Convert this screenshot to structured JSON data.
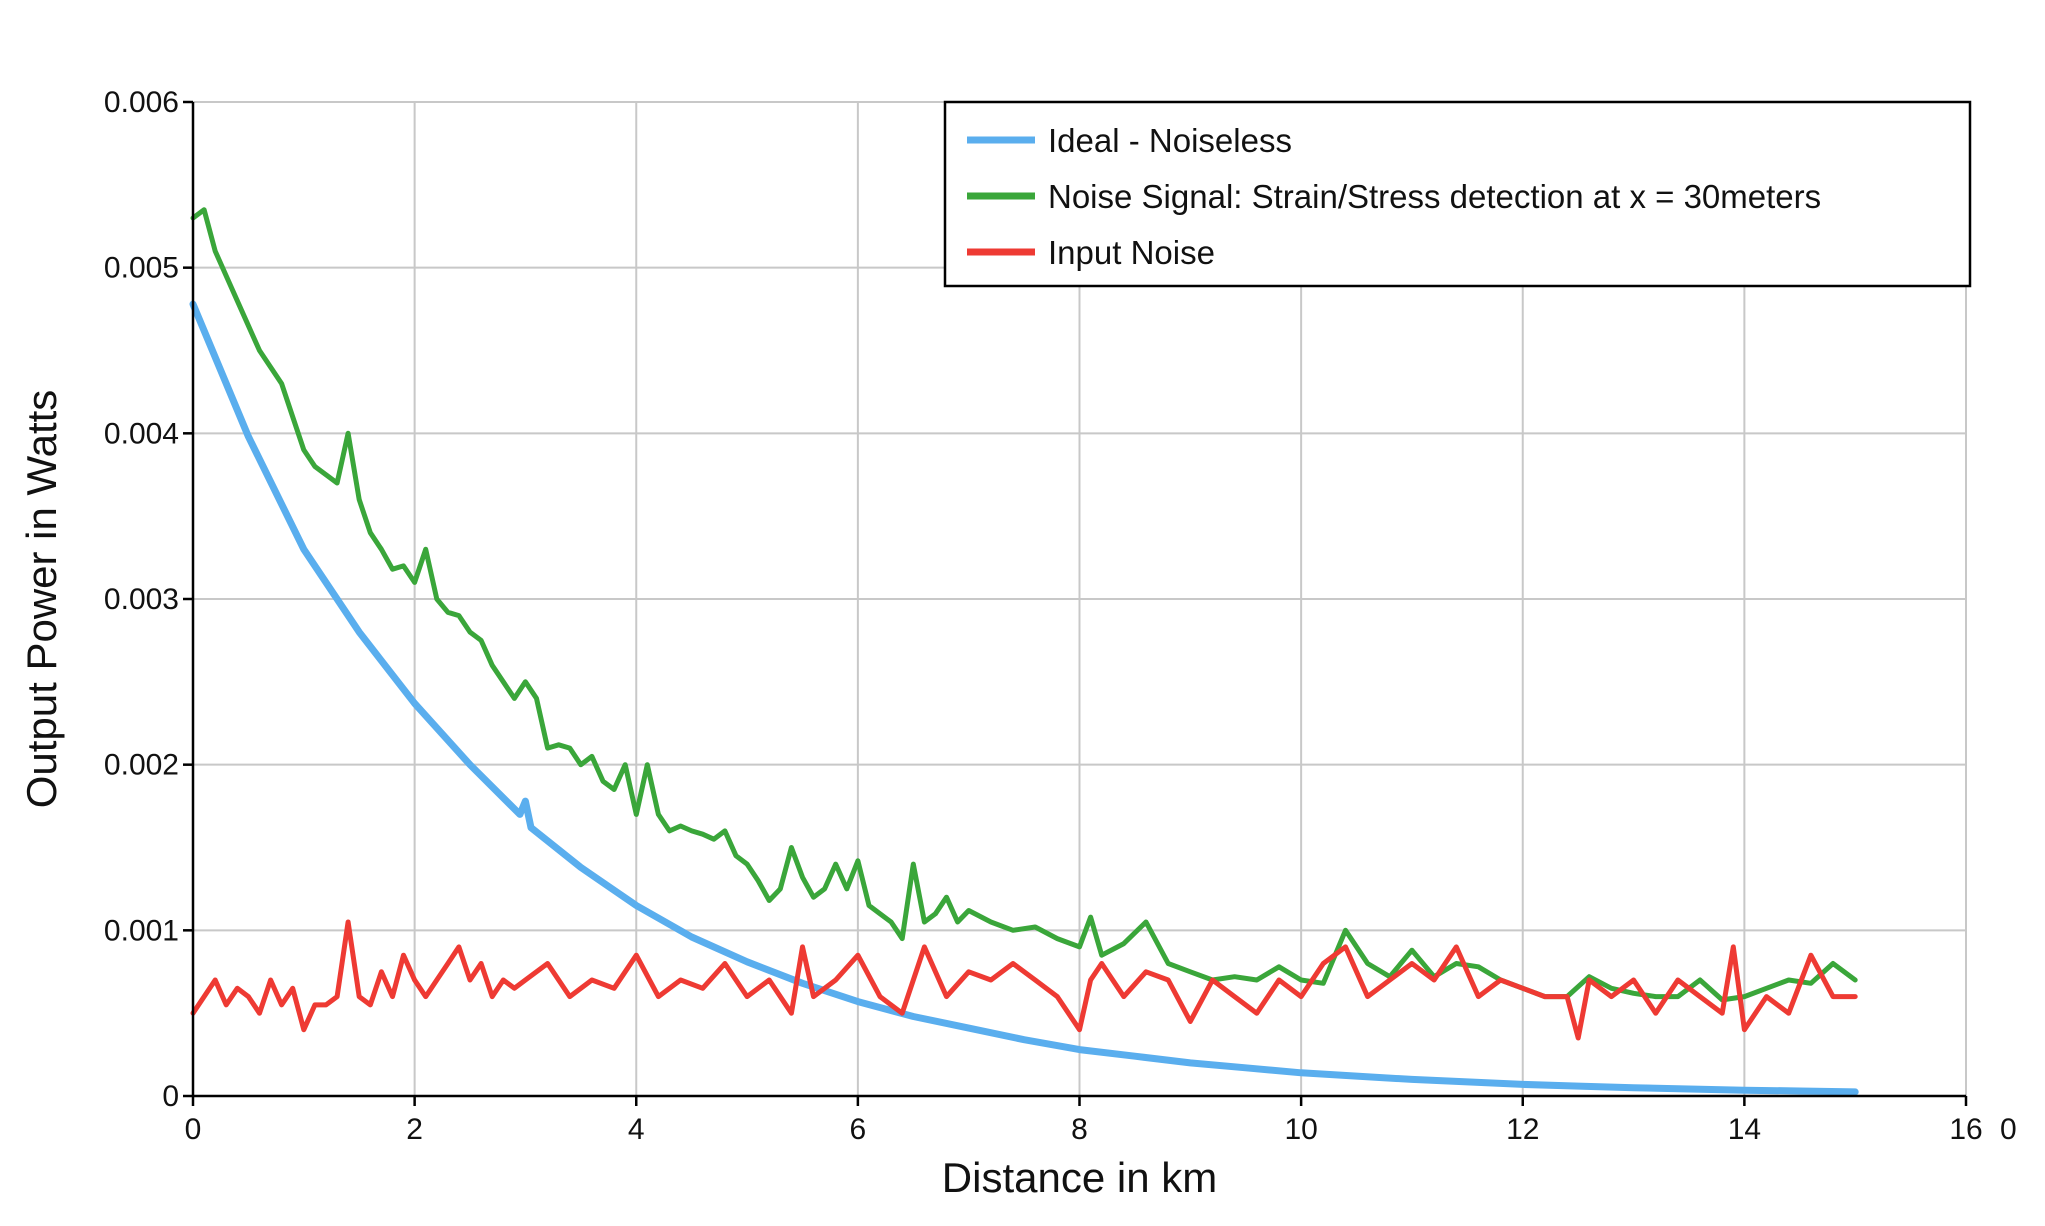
{
  "chart_data": {
    "type": "line",
    "title": "",
    "xlabel": "Distance in km",
    "ylabel": "Output Power in Watts",
    "xlim": [
      0,
      16
    ],
    "ylim": [
      0,
      0.006
    ],
    "x_ticks": [
      0,
      2,
      4,
      6,
      8,
      10,
      12,
      14,
      16
    ],
    "x_tick_labels": [
      "0",
      "2",
      "4",
      "6",
      "8",
      "10",
      "12",
      "14",
      "16"
    ],
    "y_ticks": [
      0,
      0.001,
      0.002,
      0.003,
      0.004,
      0.005,
      0.006
    ],
    "y_tick_labels": [
      "0",
      "0.001",
      "0.002",
      "0.003",
      "0.004",
      "0.005",
      "0.006"
    ],
    "extra_label": "0",
    "grid": true,
    "legend_position": "top-right",
    "series": [
      {
        "name": "Ideal - Noiseless",
        "color": "#5aaeee",
        "x": [
          0,
          0.5,
          1,
          1.5,
          2,
          2.5,
          2.95,
          3.0,
          3.05,
          3.5,
          4,
          4.5,
          5,
          5.5,
          6,
          6.5,
          7,
          7.5,
          8,
          8.5,
          9,
          9.5,
          10,
          10.5,
          11,
          11.5,
          12,
          12.5,
          13,
          13.5,
          14,
          14.5,
          15
        ],
        "y": [
          0.00478,
          0.00398,
          0.0033,
          0.0028,
          0.00237,
          0.002,
          0.0017,
          0.00178,
          0.00162,
          0.00138,
          0.00115,
          0.00096,
          0.00081,
          0.00068,
          0.00057,
          0.00048,
          0.00041,
          0.00034,
          0.00028,
          0.00024,
          0.0002,
          0.00017,
          0.00014,
          0.00012,
          0.0001,
          8.5e-05,
          7e-05,
          6e-05,
          5e-05,
          4.2e-05,
          3.5e-05,
          3e-05,
          2.5e-05
        ]
      },
      {
        "name": "Noise Signal: Strain/Stress detection at x = 30meters",
        "color": "#3aa63a",
        "x": [
          0,
          0.1,
          0.2,
          0.3,
          0.4,
          0.5,
          0.6,
          0.7,
          0.8,
          0.9,
          1.0,
          1.1,
          1.2,
          1.3,
          1.4,
          1.5,
          1.6,
          1.7,
          1.8,
          1.9,
          2.0,
          2.1,
          2.2,
          2.3,
          2.4,
          2.5,
          2.6,
          2.7,
          2.8,
          2.9,
          3.0,
          3.1,
          3.2,
          3.3,
          3.4,
          3.5,
          3.6,
          3.7,
          3.8,
          3.9,
          4.0,
          4.1,
          4.2,
          4.3,
          4.4,
          4.5,
          4.6,
          4.7,
          4.8,
          4.9,
          5.0,
          5.1,
          5.2,
          5.3,
          5.4,
          5.5,
          5.6,
          5.7,
          5.8,
          5.9,
          6.0,
          6.1,
          6.2,
          6.3,
          6.4,
          6.5,
          6.6,
          6.7,
          6.8,
          6.9,
          7.0,
          7.2,
          7.4,
          7.6,
          7.8,
          8.0,
          8.1,
          8.2,
          8.4,
          8.6,
          8.8,
          9.0,
          9.2,
          9.4,
          9.6,
          9.8,
          10.0,
          10.2,
          10.4,
          10.6,
          10.8,
          11.0,
          11.2,
          11.4,
          11.6,
          11.8,
          12.0,
          12.2,
          12.4,
          12.6,
          12.8,
          13.0,
          13.2,
          13.4,
          13.6,
          13.8,
          14.0,
          14.2,
          14.4,
          14.6,
          14.8,
          15.0
        ],
        "y": [
          0.0053,
          0.00535,
          0.0051,
          0.00495,
          0.0048,
          0.00465,
          0.0045,
          0.0044,
          0.0043,
          0.0041,
          0.0039,
          0.0038,
          0.00375,
          0.0037,
          0.004,
          0.0036,
          0.0034,
          0.0033,
          0.00318,
          0.0032,
          0.0031,
          0.0033,
          0.003,
          0.00292,
          0.0029,
          0.0028,
          0.00275,
          0.0026,
          0.0025,
          0.0024,
          0.0025,
          0.0024,
          0.0021,
          0.00212,
          0.0021,
          0.002,
          0.00205,
          0.0019,
          0.00185,
          0.002,
          0.0017,
          0.002,
          0.0017,
          0.0016,
          0.00163,
          0.0016,
          0.00158,
          0.00155,
          0.0016,
          0.00145,
          0.0014,
          0.0013,
          0.00118,
          0.00125,
          0.0015,
          0.00132,
          0.0012,
          0.00125,
          0.0014,
          0.00125,
          0.00142,
          0.00115,
          0.0011,
          0.00105,
          0.00095,
          0.0014,
          0.00105,
          0.0011,
          0.0012,
          0.00105,
          0.00112,
          0.00105,
          0.001,
          0.00102,
          0.00095,
          0.0009,
          0.00108,
          0.00085,
          0.00092,
          0.00105,
          0.0008,
          0.00075,
          0.0007,
          0.00072,
          0.0007,
          0.00078,
          0.0007,
          0.00068,
          0.001,
          0.0008,
          0.00072,
          0.00088,
          0.00072,
          0.0008,
          0.00078,
          0.0007,
          0.00065,
          0.0006,
          0.0006,
          0.00072,
          0.00065,
          0.00062,
          0.0006,
          0.0006,
          0.0007,
          0.00058,
          0.0006,
          0.00065,
          0.0007,
          0.00068,
          0.0008,
          0.0007
        ]
      },
      {
        "name": "Input Noise",
        "color": "#ee3a33",
        "x": [
          0,
          0.1,
          0.2,
          0.3,
          0.4,
          0.5,
          0.6,
          0.7,
          0.8,
          0.9,
          1.0,
          1.1,
          1.2,
          1.3,
          1.4,
          1.5,
          1.6,
          1.7,
          1.8,
          1.9,
          2.0,
          2.1,
          2.2,
          2.3,
          2.4,
          2.5,
          2.6,
          2.7,
          2.8,
          2.9,
          3.0,
          3.2,
          3.4,
          3.6,
          3.8,
          4.0,
          4.2,
          4.4,
          4.6,
          4.8,
          5.0,
          5.2,
          5.4,
          5.5,
          5.6,
          5.8,
          6.0,
          6.2,
          6.4,
          6.6,
          6.8,
          7.0,
          7.2,
          7.4,
          7.6,
          7.8,
          8.0,
          8.1,
          8.2,
          8.4,
          8.6,
          8.8,
          9.0,
          9.2,
          9.4,
          9.6,
          9.8,
          10.0,
          10.2,
          10.4,
          10.6,
          10.8,
          11.0,
          11.2,
          11.4,
          11.6,
          11.8,
          12.0,
          12.2,
          12.4,
          12.5,
          12.6,
          12.8,
          13.0,
          13.2,
          13.4,
          13.6,
          13.8,
          13.9,
          14.0,
          14.2,
          14.4,
          14.6,
          14.8,
          15.0
        ],
        "y": [
          0.0005,
          0.0006,
          0.0007,
          0.00055,
          0.00065,
          0.0006,
          0.0005,
          0.0007,
          0.00055,
          0.00065,
          0.0004,
          0.00055,
          0.00055,
          0.0006,
          0.00105,
          0.0006,
          0.00055,
          0.00075,
          0.0006,
          0.00085,
          0.0007,
          0.0006,
          0.0007,
          0.0008,
          0.0009,
          0.0007,
          0.0008,
          0.0006,
          0.0007,
          0.00065,
          0.0007,
          0.0008,
          0.0006,
          0.0007,
          0.00065,
          0.00085,
          0.0006,
          0.0007,
          0.00065,
          0.0008,
          0.0006,
          0.0007,
          0.0005,
          0.0009,
          0.0006,
          0.0007,
          0.00085,
          0.0006,
          0.0005,
          0.0009,
          0.0006,
          0.00075,
          0.0007,
          0.0008,
          0.0007,
          0.0006,
          0.0004,
          0.0007,
          0.0008,
          0.0006,
          0.00075,
          0.0007,
          0.00045,
          0.0007,
          0.0006,
          0.0005,
          0.0007,
          0.0006,
          0.0008,
          0.0009,
          0.0006,
          0.0007,
          0.0008,
          0.0007,
          0.0009,
          0.0006,
          0.0007,
          0.00065,
          0.0006,
          0.0006,
          0.00035,
          0.0007,
          0.0006,
          0.0007,
          0.0005,
          0.0007,
          0.0006,
          0.0005,
          0.0009,
          0.0004,
          0.0006,
          0.0005,
          0.00085,
          0.0006,
          0.0006
        ]
      }
    ]
  }
}
